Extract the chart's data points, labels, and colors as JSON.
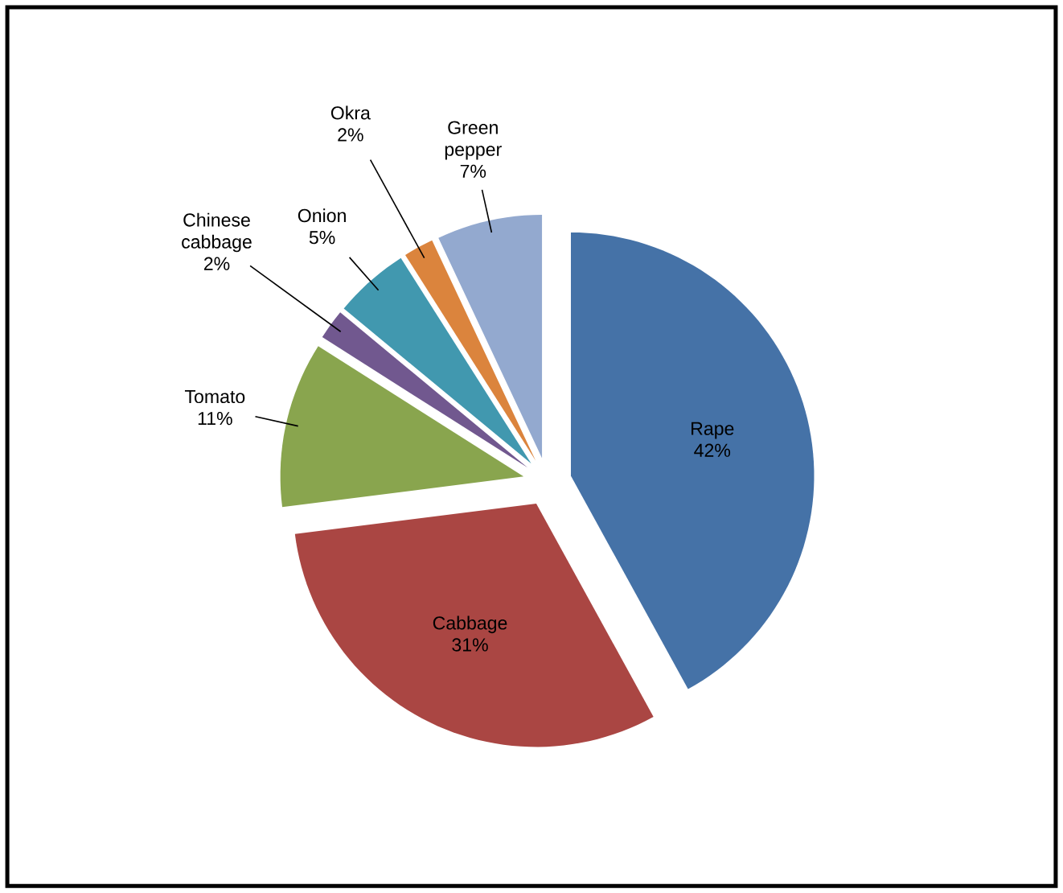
{
  "chart_data": {
    "type": "pie",
    "categories": [
      "Rape",
      "Cabbage",
      "Tomato",
      "Chinese cabbage",
      "Onion",
      "Okra",
      "Green pepper"
    ],
    "values": [
      42,
      31,
      11,
      2,
      5,
      2,
      7
    ],
    "value_labels": [
      "42%",
      "31%",
      "11%",
      "2%",
      "5%",
      "2%",
      "7%"
    ],
    "colors": [
      "#4572a7",
      "#aa4643",
      "#89a54e",
      "#71588f",
      "#4198af",
      "#db843d",
      "#93a9cf"
    ],
    "legend": false
  }
}
